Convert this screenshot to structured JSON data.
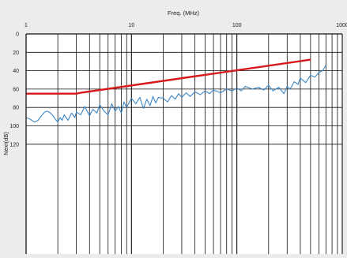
{
  "chart_data": {
    "type": "line",
    "title": "",
    "xlabel": "Freq. (MHz)",
    "ylabel": "Next(dB)",
    "x_scale": "log",
    "y_reversed": true,
    "xlim": [
      1,
      1000
    ],
    "ylim": [
      0,
      120
    ],
    "x_ticks": [
      "1",
      "10",
      "100",
      "1000"
    ],
    "y_ticks": [
      "0",
      "20",
      "40",
      "60",
      "80",
      "100",
      "120"
    ],
    "grid": true,
    "legend": "none",
    "series": [
      {
        "color": "#d7191c",
        "x": [
          1,
          3,
          3.3,
          500
        ],
        "y": [
          65,
          65,
          64,
          28
        ]
      },
      {
        "color": "#3a87c8",
        "x": [
          1,
          1.1,
          1.2,
          1.3,
          1.4,
          1.5,
          1.6,
          1.7,
          1.8,
          1.9,
          2,
          2.1,
          2.2,
          2.3,
          2.5,
          2.7,
          2.9,
          3,
          3.3,
          3.6,
          4,
          4.3,
          4.7,
          5,
          5.5,
          6,
          6.5,
          7,
          7.5,
          8,
          8.5,
          9,
          10,
          11,
          12,
          13,
          14,
          15,
          16,
          17,
          18,
          20,
          22,
          24,
          26,
          28,
          30,
          33,
          36,
          40,
          45,
          50,
          55,
          60,
          70,
          80,
          90,
          100,
          110,
          120,
          140,
          160,
          180,
          200,
          220,
          250,
          280,
          300,
          320,
          350,
          380,
          400,
          450,
          500,
          550,
          600,
          650,
          700
        ],
        "y": [
          91,
          93,
          96,
          94,
          89,
          85,
          84,
          86,
          89,
          93,
          96,
          91,
          94,
          88,
          94,
          86,
          91,
          85,
          88,
          79,
          89,
          82,
          86,
          77,
          84,
          88,
          76,
          84,
          79,
          86,
          74,
          80,
          70,
          76,
          69,
          81,
          71,
          78,
          68,
          75,
          69,
          70,
          74,
          67,
          71,
          65,
          69,
          64,
          68,
          63,
          66,
          62,
          65,
          61,
          64,
          60,
          62,
          59,
          62,
          57,
          60,
          58,
          61,
          56,
          62,
          58,
          65,
          57,
          60,
          52,
          55,
          48,
          53,
          45,
          47,
          42,
          40,
          34
        ]
      }
    ]
  }
}
